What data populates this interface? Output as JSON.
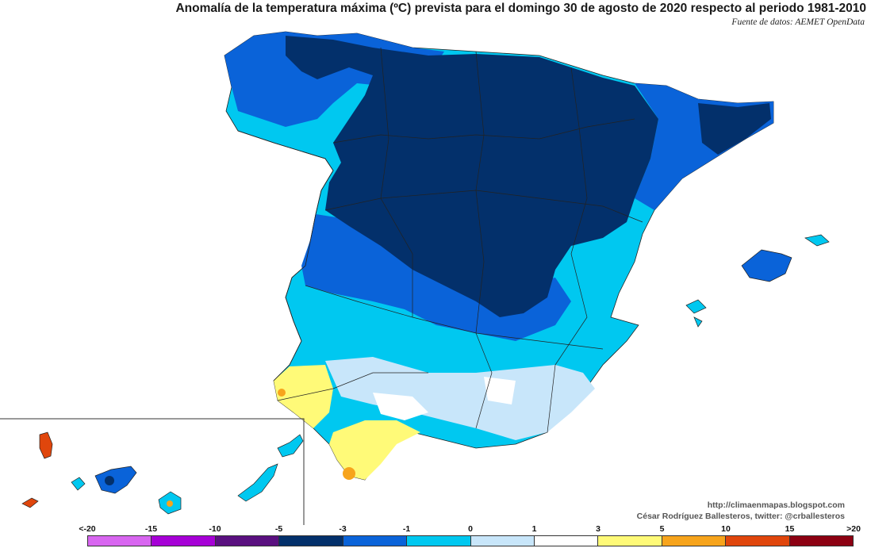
{
  "title": "Anomalía de la temperatura máxima (ºC) prevista para el domingo 30 de agosto de 2020 respecto al periodo 1981-2010",
  "source": "Fuente de datos: AEMET OpenData",
  "credits": {
    "blog": "http://climaenmapas.blogspot.com",
    "author": "César Rodríguez Ballesteros, twitter: @crballesteros"
  },
  "legend": {
    "tick_labels": [
      "<-20",
      "-15",
      "-10",
      "-5",
      "-3",
      "-1",
      "0",
      "1",
      "3",
      "5",
      "10",
      "15",
      ">20"
    ],
    "colors": [
      "#d866f0",
      "#a600d6",
      "#5a1080",
      "#03306b",
      "#0a63d9",
      "#00c8f0",
      "#c8e6fa",
      "#ffffff",
      "#fffa78",
      "#f7a41c",
      "#e0460c",
      "#8c0012",
      "#6b3a00"
    ]
  },
  "colors": {
    "anomaly_below_5": "#03306b",
    "anomaly_5_to_3": "#0a63d9",
    "anomaly_3_to_1": "#00c8f0",
    "anomaly_1_to_0": "#c8e6fa",
    "anomaly_0_to_1": "#ffffff",
    "anomaly_1_to_3": "#fffa78",
    "anomaly_3_to_5": "#f7a41c",
    "anomaly_5_to_10": "#e0460c"
  }
}
